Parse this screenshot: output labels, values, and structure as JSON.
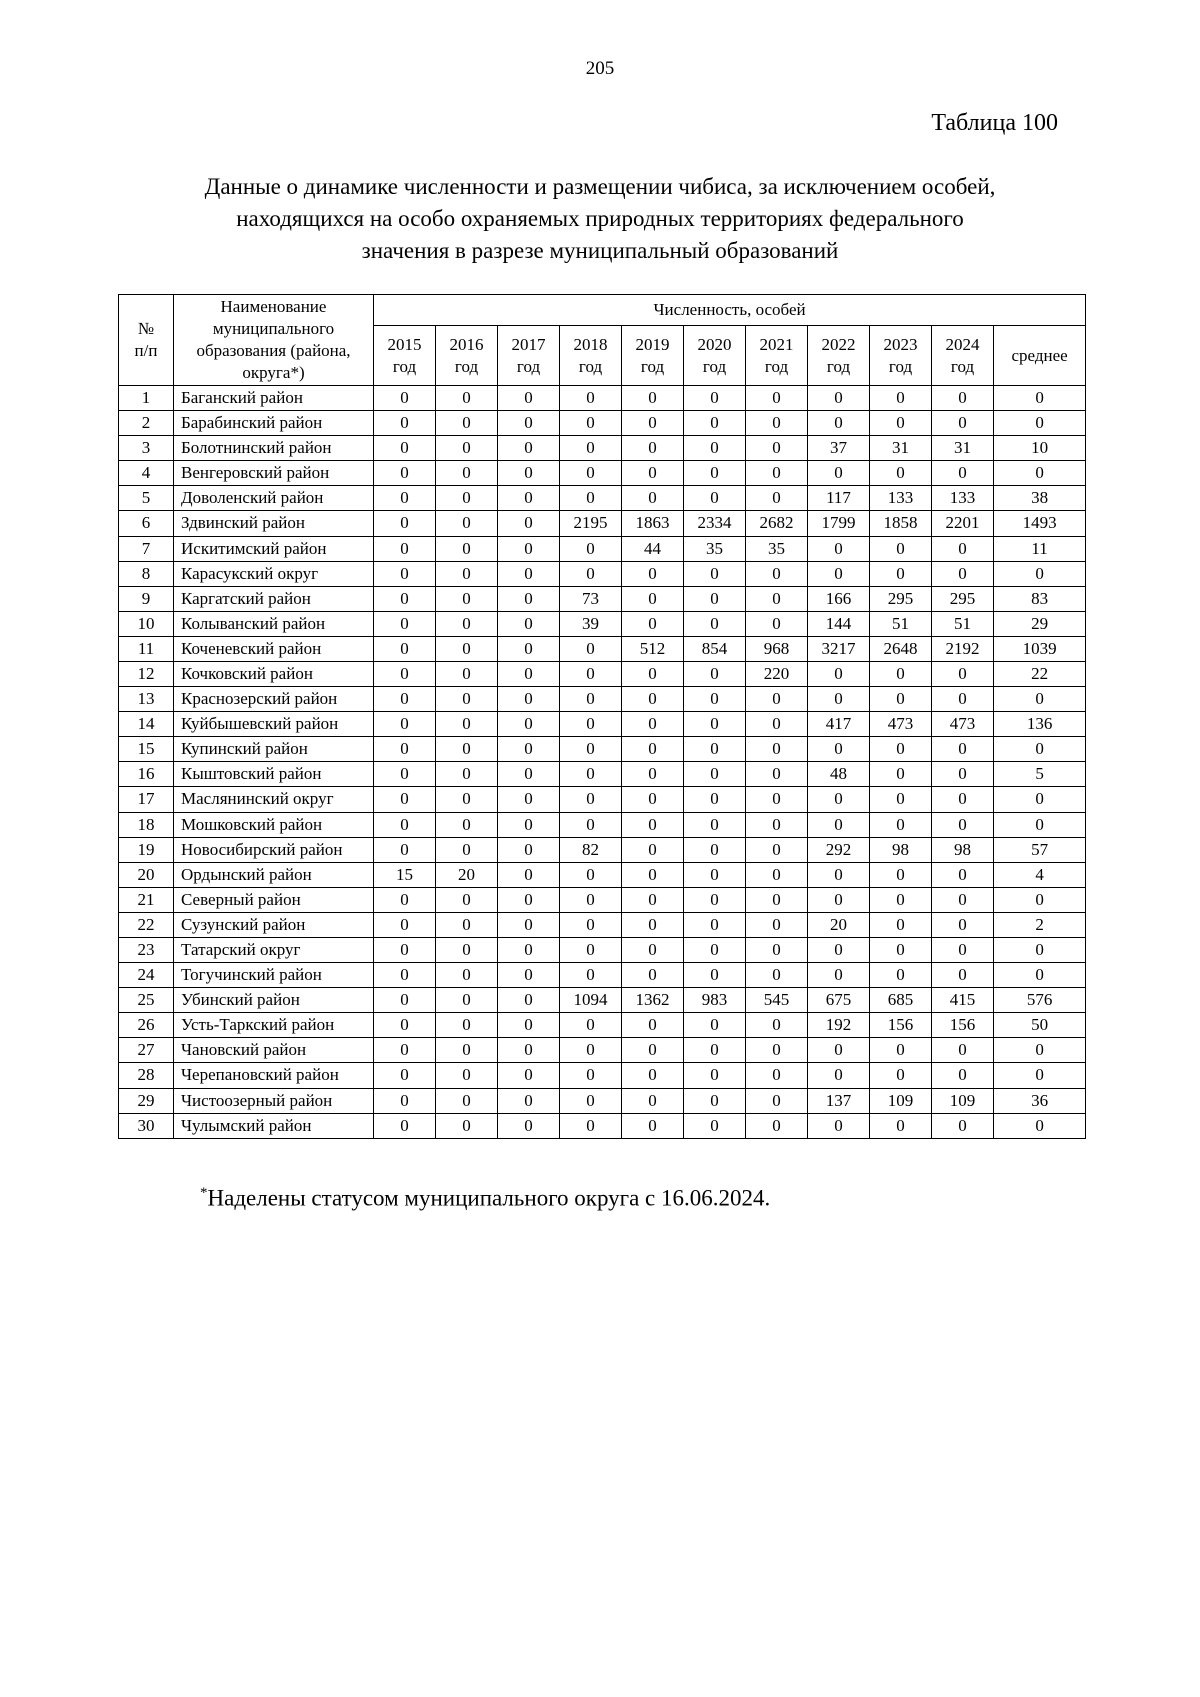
{
  "page": {
    "number": "205",
    "table_label": "Таблица 100",
    "title": "Данные о динамике численности и размещении чибиса, за исключением особей,\nнаходящихся на особо охраняемых природных территориях федерального\nзначения в разрезе муниципальный образований",
    "footnote_marker": "*",
    "footnote_text": "Наделены статусом муниципального округа с 16.06.2024."
  },
  "table": {
    "header": {
      "num": "№\nп/п",
      "name": "Наименование муниципального образования (района, округа*)",
      "group": "Численность, особей",
      "year_headers": [
        "2015\nгод",
        "2016\nгод",
        "2017\nгод",
        "2018\nгод",
        "2019\nгод",
        "2020\nгод",
        "2021\nгод",
        "2022\nгод",
        "2023\nгод",
        "2024\nгод",
        "среднее"
      ]
    },
    "rows": [
      {
        "num": 1,
        "name": "Баганский район",
        "values": [
          0,
          0,
          0,
          0,
          0,
          0,
          0,
          0,
          0,
          0,
          0
        ]
      },
      {
        "num": 2,
        "name": "Барабинский район",
        "values": [
          0,
          0,
          0,
          0,
          0,
          0,
          0,
          0,
          0,
          0,
          0
        ]
      },
      {
        "num": 3,
        "name": "Болотнинский район",
        "values": [
          0,
          0,
          0,
          0,
          0,
          0,
          0,
          37,
          31,
          31,
          10
        ]
      },
      {
        "num": 4,
        "name": "Венгеровский район",
        "values": [
          0,
          0,
          0,
          0,
          0,
          0,
          0,
          0,
          0,
          0,
          0
        ]
      },
      {
        "num": 5,
        "name": "Доволенский район",
        "values": [
          0,
          0,
          0,
          0,
          0,
          0,
          0,
          117,
          133,
          133,
          38
        ]
      },
      {
        "num": 6,
        "name": "Здвинский район",
        "values": [
          0,
          0,
          0,
          2195,
          1863,
          2334,
          2682,
          1799,
          1858,
          2201,
          1493
        ]
      },
      {
        "num": 7,
        "name": "Искитимский район",
        "values": [
          0,
          0,
          0,
          0,
          44,
          35,
          35,
          0,
          0,
          0,
          11
        ]
      },
      {
        "num": 8,
        "name": "Карасукский округ",
        "values": [
          0,
          0,
          0,
          0,
          0,
          0,
          0,
          0,
          0,
          0,
          0
        ]
      },
      {
        "num": 9,
        "name": "Каргатский район",
        "values": [
          0,
          0,
          0,
          73,
          0,
          0,
          0,
          166,
          295,
          295,
          83
        ]
      },
      {
        "num": 10,
        "name": "Колыванский район",
        "values": [
          0,
          0,
          0,
          39,
          0,
          0,
          0,
          144,
          51,
          51,
          29
        ]
      },
      {
        "num": 11,
        "name": "Коченевский район",
        "values": [
          0,
          0,
          0,
          0,
          512,
          854,
          968,
          3217,
          2648,
          2192,
          1039
        ]
      },
      {
        "num": 12,
        "name": "Кочковский район",
        "values": [
          0,
          0,
          0,
          0,
          0,
          0,
          220,
          0,
          0,
          0,
          22
        ]
      },
      {
        "num": 13,
        "name": "Краснозерский район",
        "values": [
          0,
          0,
          0,
          0,
          0,
          0,
          0,
          0,
          0,
          0,
          0
        ]
      },
      {
        "num": 14,
        "name": "Куйбышевский район",
        "values": [
          0,
          0,
          0,
          0,
          0,
          0,
          0,
          417,
          473,
          473,
          136
        ]
      },
      {
        "num": 15,
        "name": "Купинский район",
        "values": [
          0,
          0,
          0,
          0,
          0,
          0,
          0,
          0,
          0,
          0,
          0
        ]
      },
      {
        "num": 16,
        "name": "Кыштовский район",
        "values": [
          0,
          0,
          0,
          0,
          0,
          0,
          0,
          48,
          0,
          0,
          5
        ]
      },
      {
        "num": 17,
        "name": "Маслянинский округ",
        "values": [
          0,
          0,
          0,
          0,
          0,
          0,
          0,
          0,
          0,
          0,
          0
        ]
      },
      {
        "num": 18,
        "name": "Мошковский район",
        "values": [
          0,
          0,
          0,
          0,
          0,
          0,
          0,
          0,
          0,
          0,
          0
        ]
      },
      {
        "num": 19,
        "name": "Новосибирский район",
        "values": [
          0,
          0,
          0,
          82,
          0,
          0,
          0,
          292,
          98,
          98,
          57
        ]
      },
      {
        "num": 20,
        "name": "Ордынский район",
        "values": [
          15,
          20,
          0,
          0,
          0,
          0,
          0,
          0,
          0,
          0,
          4
        ]
      },
      {
        "num": 21,
        "name": "Северный район",
        "values": [
          0,
          0,
          0,
          0,
          0,
          0,
          0,
          0,
          0,
          0,
          0
        ]
      },
      {
        "num": 22,
        "name": "Сузунский район",
        "values": [
          0,
          0,
          0,
          0,
          0,
          0,
          0,
          20,
          0,
          0,
          2
        ]
      },
      {
        "num": 23,
        "name": "Татарский округ",
        "values": [
          0,
          0,
          0,
          0,
          0,
          0,
          0,
          0,
          0,
          0,
          0
        ]
      },
      {
        "num": 24,
        "name": "Тогучинский район",
        "values": [
          0,
          0,
          0,
          0,
          0,
          0,
          0,
          0,
          0,
          0,
          0
        ]
      },
      {
        "num": 25,
        "name": "Убинский район",
        "values": [
          0,
          0,
          0,
          1094,
          1362,
          983,
          545,
          675,
          685,
          415,
          576
        ]
      },
      {
        "num": 26,
        "name": "Усть-Таркский район",
        "values": [
          0,
          0,
          0,
          0,
          0,
          0,
          0,
          192,
          156,
          156,
          50
        ]
      },
      {
        "num": 27,
        "name": "Чановский район",
        "values": [
          0,
          0,
          0,
          0,
          0,
          0,
          0,
          0,
          0,
          0,
          0
        ]
      },
      {
        "num": 28,
        "name": "Черепановский район",
        "values": [
          0,
          0,
          0,
          0,
          0,
          0,
          0,
          0,
          0,
          0,
          0
        ]
      },
      {
        "num": 29,
        "name": "Чистоозерный район",
        "values": [
          0,
          0,
          0,
          0,
          0,
          0,
          0,
          137,
          109,
          109,
          36
        ]
      },
      {
        "num": 30,
        "name": "Чулымский район",
        "values": [
          0,
          0,
          0,
          0,
          0,
          0,
          0,
          0,
          0,
          0,
          0
        ]
      }
    ]
  }
}
